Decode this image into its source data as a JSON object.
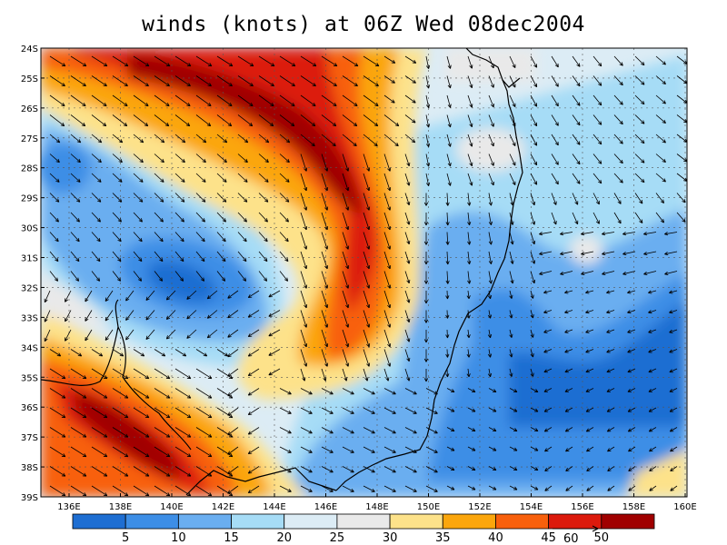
{
  "title": "winds (knots) at 06Z Wed 08dec2004",
  "latitude_labels": [
    "24S",
    "25S",
    "26S",
    "27S",
    "28S",
    "29S",
    "30S",
    "31S",
    "32S",
    "33S",
    "34S",
    "35S",
    "36S",
    "37S",
    "38S",
    "39S"
  ],
  "longitude_labels": [
    "136E",
    "138E",
    "140E",
    "142E",
    "144E",
    "146E",
    "148E",
    "150E",
    "152E",
    "154E",
    "156E",
    "158E",
    "160E"
  ],
  "colorbar": {
    "colors": [
      "#1e6ed2",
      "#3d8ee6",
      "#6aaef0",
      "#a6dcf6",
      "#dcecf5",
      "#e9e9e9",
      "#fde28a",
      "#fba60c",
      "#f8600c",
      "#dc1a0c",
      "#a00000"
    ],
    "labels": [
      "5",
      "10",
      "15",
      "20",
      "25",
      "30",
      "35",
      "40",
      "45",
      "50"
    ]
  },
  "reference_vector": {
    "label": "60"
  },
  "colors": {
    "coastline": "#000000",
    "gridline": "#555555"
  }
}
